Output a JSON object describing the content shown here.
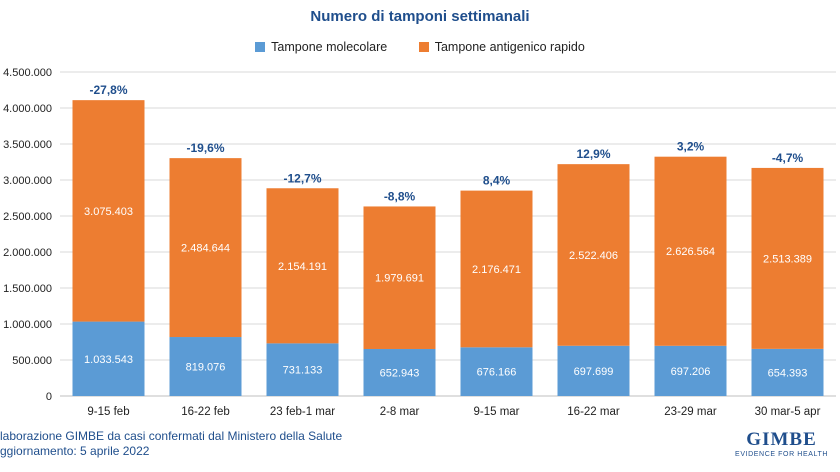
{
  "chart_data": {
    "type": "bar",
    "stacked": true,
    "title": "Numero di tamponi settimanali",
    "categories": [
      "9-15 feb",
      "16-22 feb",
      "23 feb-1 mar",
      "2-8 mar",
      "9-15 mar",
      "16-22 mar",
      "23-29 mar",
      "30 mar-5 apr"
    ],
    "series": [
      {
        "name": "Tampone molecolare",
        "color": "#5b9bd5",
        "values": [
          1033543,
          819076,
          731133,
          652943,
          676166,
          697699,
          697206,
          654393
        ],
        "labels": [
          "1.033.543",
          "819.076",
          "731.133",
          "652.943",
          "676.166",
          "697.699",
          "697.206",
          "654.393"
        ]
      },
      {
        "name": "Tampone antigenico rapido",
        "color": "#ed7d31",
        "values": [
          3075403,
          2484644,
          2154191,
          1979691,
          2176471,
          2522406,
          2626564,
          2513389
        ],
        "labels": [
          "3.075.403",
          "2.484.644",
          "2.154.191",
          "1.979.691",
          "2.176.471",
          "2.522.406",
          "2.626.564",
          "2.513.389"
        ]
      }
    ],
    "pct_change": [
      "-27,8%",
      "-19,6%",
      "-12,7%",
      "-8,8%",
      "8,4%",
      "12,9%",
      "3,2%",
      "-4,7%"
    ],
    "ylim": [
      0,
      4500000
    ],
    "yticks": [
      0,
      500000,
      1000000,
      1500000,
      2000000,
      2500000,
      3000000,
      3500000,
      4000000,
      4500000
    ],
    "ytick_labels": [
      "0",
      "500.000",
      "1.000.000",
      "1.500.000",
      "2.000.000",
      "2.500.000",
      "3.000.000",
      "3.500.000",
      "4.000.000",
      "4.500.000"
    ],
    "grid": true,
    "legend_position": "top"
  },
  "footer": {
    "line1": "laborazione GIMBE da casi confermati dal Ministero della Salute",
    "line2": "ggiornamento: 5 aprile 2022"
  },
  "logo": {
    "main": "GIMBE",
    "sub": "EVIDENCE FOR HEALTH"
  },
  "colors": {
    "title": "#1f4e8c",
    "pct_label": "#1f4e8c"
  }
}
